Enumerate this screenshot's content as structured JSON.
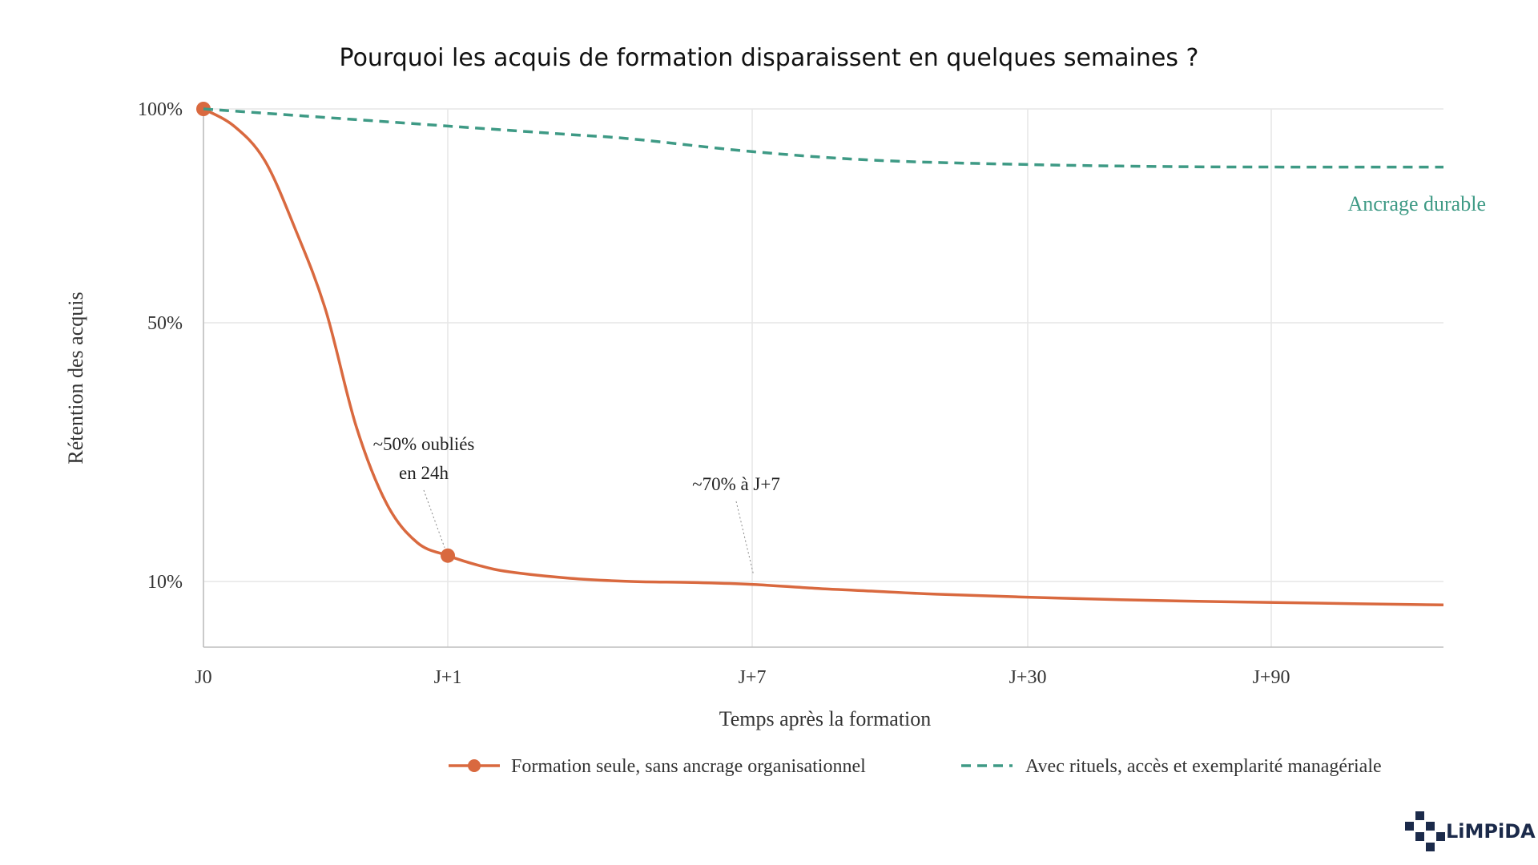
{
  "chart_data": {
    "type": "line",
    "title": "Pourquoi les acquis de formation disparaissent en quelques semaines ?",
    "xlabel": "Temps après la formation",
    "ylabel": "Rétention des acquis",
    "x_ticks": [
      "J0",
      "J+1",
      "J+7",
      "J+30",
      "J+90"
    ],
    "y_ticks": [
      {
        "label": "100%",
        "value": 100
      },
      {
        "label": "50%",
        "value": 50
      },
      {
        "label": "10%",
        "value": 10
      }
    ],
    "y_scale": "nonlinear",
    "grid": true,
    "legend_position": "bottom",
    "series": [
      {
        "name": "Formation seule, sans ancrage organisationnel",
        "color": "#D9693F",
        "style": "solid",
        "markers_at": [
          0,
          4
        ],
        "points": [
          {
            "x": 0,
            "y": 100
          },
          {
            "x": 0.5,
            "y": 96
          },
          {
            "x": 1,
            "y": 88
          },
          {
            "x": 1.5,
            "y": 72
          },
          {
            "x": 2,
            "y": 53
          },
          {
            "x": 2.5,
            "y": 34
          },
          {
            "x": 3,
            "y": 22
          },
          {
            "x": 3.5,
            "y": 16
          },
          {
            "x": 4,
            "y": 14
          },
          {
            "x": 4.5,
            "y": 12.5
          },
          {
            "x": 5,
            "y": 11.5
          },
          {
            "x": 6,
            "y": 10.5
          },
          {
            "x": 7,
            "y": 10
          },
          {
            "x": 8,
            "y": 9.9
          },
          {
            "x": 9,
            "y": 9.7
          },
          {
            "x": 10,
            "y": 9.3
          },
          {
            "x": 11,
            "y": 9
          },
          {
            "x": 12,
            "y": 8.7
          },
          {
            "x": 14,
            "y": 8.3
          },
          {
            "x": 16,
            "y": 8
          },
          {
            "x": 18,
            "y": 7.8
          },
          {
            "x": 20.3,
            "y": 7.6
          }
        ]
      },
      {
        "name": "Avec rituels, accès et exemplarité managériale",
        "color": "#3E9A85",
        "style": "dashed",
        "end_label": "Ancrage durable",
        "points": [
          {
            "x": 0,
            "y": 100
          },
          {
            "x": 2,
            "y": 98
          },
          {
            "x": 4,
            "y": 96
          },
          {
            "x": 6,
            "y": 94
          },
          {
            "x": 7,
            "y": 93
          },
          {
            "x": 9,
            "y": 90
          },
          {
            "x": 11,
            "y": 88
          },
          {
            "x": 13.5,
            "y": 87
          },
          {
            "x": 16,
            "y": 86.5
          },
          {
            "x": 18,
            "y": 86.4
          },
          {
            "x": 20.3,
            "y": 86.4
          }
        ]
      }
    ],
    "annotations": [
      {
        "lines": [
          "~50% oubliés",
          "en 24h"
        ],
        "target_x": 4,
        "target_y": 14
      },
      {
        "lines": [
          "~70% à J+7"
        ],
        "target_x": 9,
        "target_y": 10
      }
    ]
  },
  "brand": {
    "logo_text": "LiMPiDA",
    "logo_color": "#1B2A4A"
  }
}
